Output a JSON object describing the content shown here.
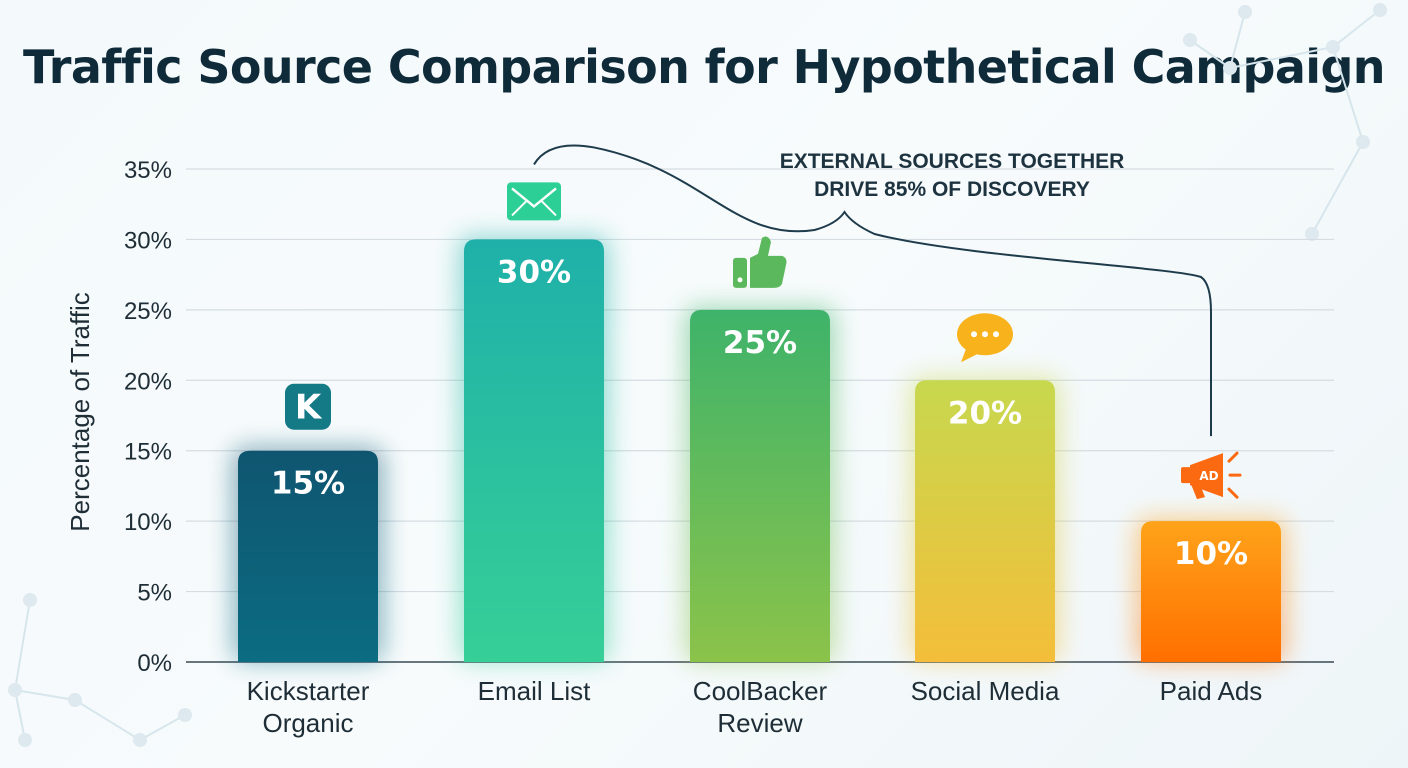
{
  "chart_data": {
    "type": "bar",
    "title": "Traffic Source Comparison for Hypothetical Campaign",
    "ylabel": "Percentage of Traffic",
    "xlabel": "",
    "ylim": [
      0,
      35
    ],
    "yticks": [
      0,
      5,
      10,
      15,
      20,
      25,
      30,
      35
    ],
    "ytick_labels": [
      "0%",
      "5%",
      "10%",
      "15%",
      "20%",
      "25%",
      "30%",
      "35%"
    ],
    "grid": true,
    "categories": [
      [
        "Kickstarter",
        "Organic"
      ],
      [
        "Email List"
      ],
      [
        "CoolBacker",
        "Review"
      ],
      [
        "Social Media"
      ],
      [
        "Paid Ads"
      ]
    ],
    "values": [
      15,
      30,
      25,
      20,
      10
    ],
    "value_labels": [
      "15%",
      "30%",
      "25%",
      "20%",
      "10%"
    ],
    "bar_colors": [
      [
        "#0b6c82",
        "#0f5570"
      ],
      [
        "#36cf97",
        "#1fb0a9"
      ],
      [
        "#8bc34a",
        "#3eb36a"
      ],
      [
        "#f4be3a",
        "#c7d84e"
      ],
      [
        "#ff6f00",
        "#ffa31a"
      ]
    ],
    "bar_icons": [
      "kickstarter-icon",
      "envelope-icon",
      "thumbs-up-icon",
      "speech-bubble-icon",
      "megaphone-icon"
    ],
    "icon_colors": [
      "#137a86",
      "#2ccf95",
      "#5cb85c",
      "#f7b21c",
      "#fb6a10"
    ],
    "annotation": {
      "lines": [
        "EXTERNAL SOURCES TOGETHER",
        "DRIVE 85% OF DISCOVERY"
      ],
      "from_category": 1,
      "to_category": 4
    },
    "icon_text": {
      "kickstarter": "K",
      "paid_ads": "AD"
    }
  }
}
